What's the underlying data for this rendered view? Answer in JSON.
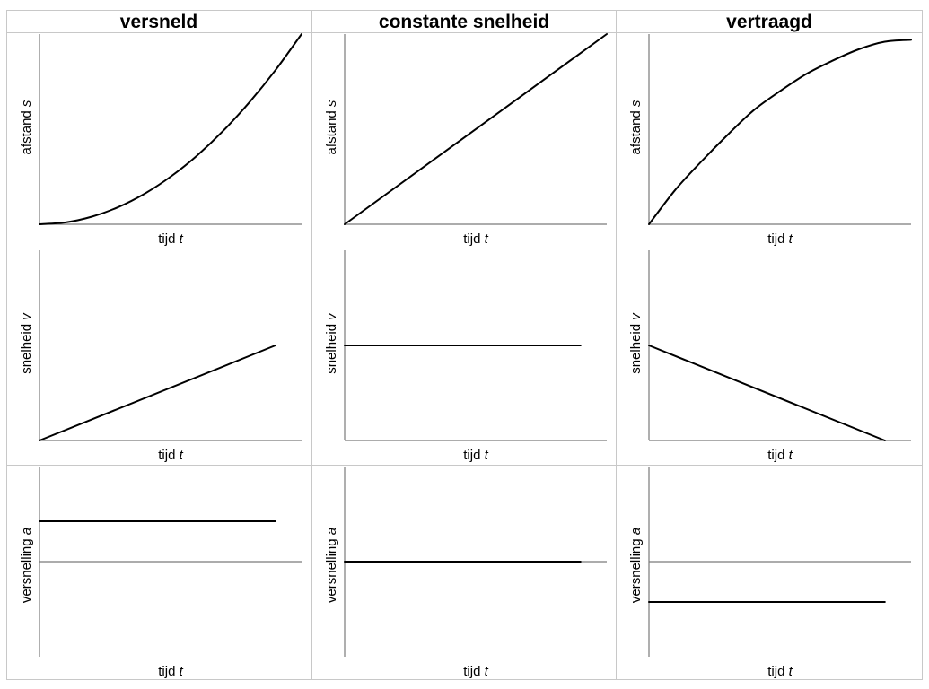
{
  "table": {
    "columns": [
      "versneld",
      "constante snelheid",
      "vertraagd"
    ]
  },
  "axis_labels": {
    "x": {
      "word": "tijd",
      "symbol": "t"
    },
    "rows": [
      {
        "word": "afstand",
        "symbol": "s"
      },
      {
        "word": "snelheid",
        "symbol": "v"
      },
      {
        "word": "versnelling",
        "symbol": "a"
      }
    ]
  },
  "chart_data": [
    {
      "type": "line",
      "title": "",
      "xlabel": "tijd t",
      "ylabel": "afstand s",
      "column": "versneld",
      "x": [
        0,
        0.1,
        0.2,
        0.3,
        0.4,
        0.5,
        0.6,
        0.7,
        0.8,
        0.9,
        1.0
      ],
      "y": [
        0,
        0.01,
        0.04,
        0.09,
        0.16,
        0.25,
        0.36,
        0.49,
        0.64,
        0.81,
        1.0
      ],
      "xlim": [
        0,
        1
      ],
      "ylim": [
        0,
        1
      ],
      "grid": false
    },
    {
      "type": "line",
      "title": "",
      "xlabel": "tijd t",
      "ylabel": "afstand s",
      "column": "constante snelheid",
      "x": [
        0,
        1.0
      ],
      "y": [
        0,
        1.0
      ],
      "xlim": [
        0,
        1
      ],
      "ylim": [
        0,
        1
      ],
      "grid": false
    },
    {
      "type": "line",
      "title": "",
      "xlabel": "tijd t",
      "ylabel": "afstand s",
      "column": "vertraagd",
      "x": [
        0,
        0.1,
        0.2,
        0.3,
        0.4,
        0.5,
        0.6,
        0.7,
        0.8,
        0.9,
        1.0
      ],
      "y": [
        0,
        0.18,
        0.33,
        0.47,
        0.6,
        0.7,
        0.79,
        0.86,
        0.92,
        0.96,
        0.97
      ],
      "xlim": [
        0,
        1
      ],
      "ylim": [
        0,
        1
      ],
      "grid": false
    },
    {
      "type": "line",
      "title": "",
      "xlabel": "tijd t",
      "ylabel": "snelheid v",
      "column": "versneld",
      "x": [
        0,
        0.9
      ],
      "y": [
        0,
        0.5
      ],
      "xlim": [
        0,
        1
      ],
      "ylim": [
        0,
        1
      ],
      "grid": false
    },
    {
      "type": "line",
      "title": "",
      "xlabel": "tijd t",
      "ylabel": "snelheid v",
      "column": "constante snelheid",
      "x": [
        0,
        0.9
      ],
      "y": [
        0.5,
        0.5
      ],
      "xlim": [
        0,
        1
      ],
      "ylim": [
        0,
        1
      ],
      "grid": false
    },
    {
      "type": "line",
      "title": "",
      "xlabel": "tijd t",
      "ylabel": "snelheid v",
      "column": "vertraagd",
      "x": [
        0,
        0.9
      ],
      "y": [
        0.5,
        0
      ],
      "xlim": [
        0,
        1
      ],
      "ylim": [
        0,
        1
      ],
      "grid": false
    },
    {
      "type": "line",
      "title": "",
      "xlabel": "tijd t",
      "ylabel": "versnelling a",
      "column": "versneld",
      "x": [
        0,
        0.9
      ],
      "y": [
        0.45,
        0.45
      ],
      "xlim": [
        0,
        1
      ],
      "ylim": [
        -1,
        1
      ],
      "zero_line": true,
      "grid": false
    },
    {
      "type": "line",
      "title": "",
      "xlabel": "tijd t",
      "ylabel": "versnelling a",
      "column": "constante snelheid",
      "x": [
        0,
        0.9
      ],
      "y": [
        0,
        0
      ],
      "xlim": [
        0,
        1
      ],
      "ylim": [
        -1,
        1
      ],
      "zero_line": true,
      "grid": false
    },
    {
      "type": "line",
      "title": "",
      "xlabel": "tijd t",
      "ylabel": "versnelling a",
      "column": "vertraagd",
      "x": [
        0,
        0.9
      ],
      "y": [
        -0.45,
        -0.45
      ],
      "xlim": [
        0,
        1
      ],
      "ylim": [
        -1,
        1
      ],
      "zero_line": true,
      "grid": false
    }
  ]
}
